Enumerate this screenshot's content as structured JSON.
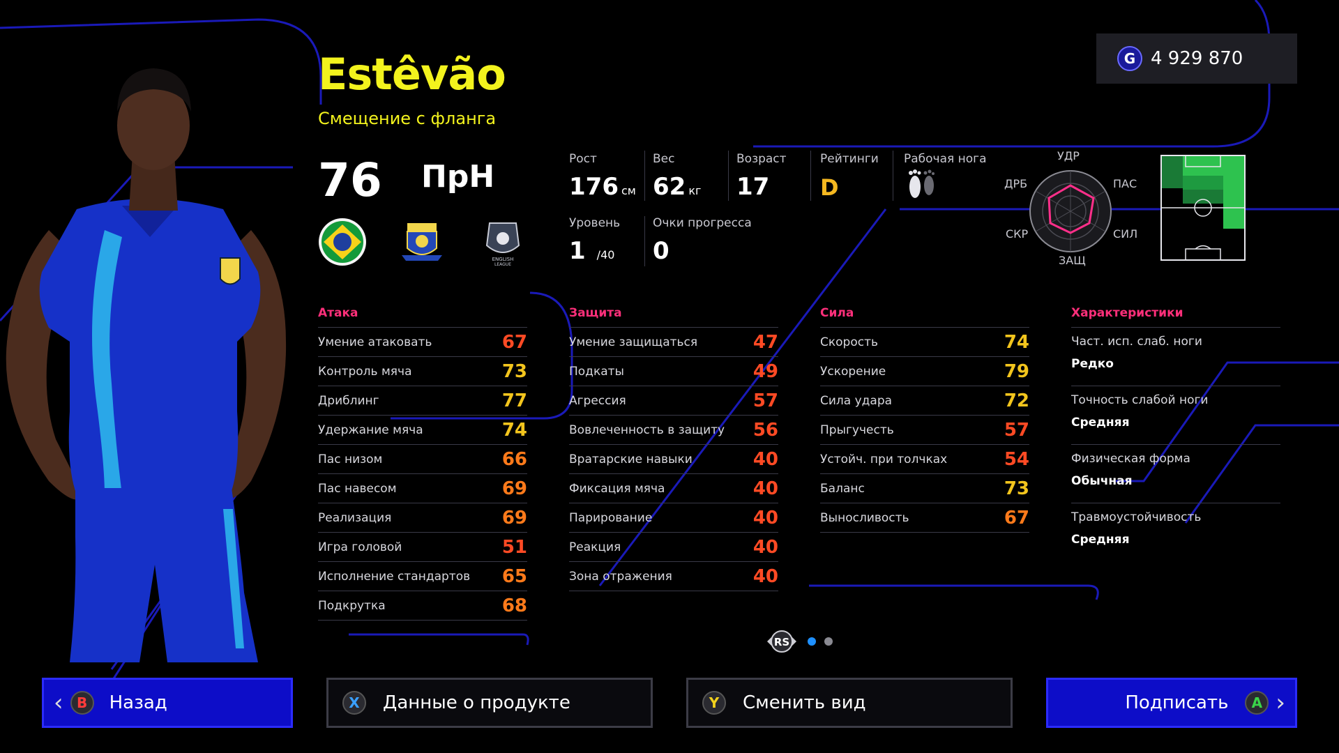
{
  "currency": {
    "icon": "G",
    "value": "4 929 870"
  },
  "player": {
    "name": "Estêvão",
    "play_style": "Смещение с фланга",
    "overall": "76",
    "position": "ПрН"
  },
  "info": {
    "height_label": "Рост",
    "height_value": "176",
    "height_unit": "см",
    "weight_label": "Вес",
    "weight_value": "62",
    "weight_unit": "кг",
    "age_label": "Возраст",
    "age_value": "17",
    "ratings_label": "Рейтинги",
    "ratings_value": "D",
    "foot_label": "Рабочая нога",
    "level_label": "Уровень",
    "level_value": "1",
    "level_max": "/40",
    "progress_label": "Очки прогресса",
    "progress_value": "0"
  },
  "radar": {
    "top": "УДР",
    "right_top": "ПАС",
    "right_bottom": "СИЛ",
    "bottom": "ЗАЩ",
    "left_bottom": "СКР",
    "left_top": "ДРБ"
  },
  "columns": {
    "attack": {
      "title": "Атака",
      "stats": [
        {
          "name": "Умение атаковать",
          "value": "67"
        },
        {
          "name": "Контроль мяча",
          "value": "73"
        },
        {
          "name": "Дриблинг",
          "value": "77"
        },
        {
          "name": "Удержание мяча",
          "value": "74"
        },
        {
          "name": "Пас низом",
          "value": "66"
        },
        {
          "name": "Пас навесом",
          "value": "69"
        },
        {
          "name": "Реализация",
          "value": "69"
        },
        {
          "name": "Игра головой",
          "value": "51"
        },
        {
          "name": "Исполнение стандартов",
          "value": "65"
        },
        {
          "name": "Подкрутка",
          "value": "68"
        }
      ]
    },
    "defense": {
      "title": "Защита",
      "stats": [
        {
          "name": "Умение защищаться",
          "value": "47"
        },
        {
          "name": "Подкаты",
          "value": "49"
        },
        {
          "name": "Агрессия",
          "value": "57"
        },
        {
          "name": "Вовлеченность в защиту",
          "value": "56"
        },
        {
          "name": "Вратарские навыки",
          "value": "40"
        },
        {
          "name": "Фиксация мяча",
          "value": "40"
        },
        {
          "name": "Парирование",
          "value": "40"
        },
        {
          "name": "Реакция",
          "value": "40"
        },
        {
          "name": "Зона отражения",
          "value": "40"
        }
      ]
    },
    "power": {
      "title": "Сила",
      "stats": [
        {
          "name": "Скорость",
          "value": "74"
        },
        {
          "name": "Ускорение",
          "value": "79"
        },
        {
          "name": "Сила удара",
          "value": "72"
        },
        {
          "name": "Прыгучесть",
          "value": "57"
        },
        {
          "name": "Устойч. при толчках",
          "value": "54"
        },
        {
          "name": "Баланс",
          "value": "73"
        },
        {
          "name": "Выносливость",
          "value": "67"
        }
      ]
    },
    "traits": {
      "title": "Характеристики",
      "items": [
        {
          "label": "Част. исп. слаб. ноги",
          "value": "Редко"
        },
        {
          "label": "Точность слабой ноги",
          "value": "Средняя"
        },
        {
          "label": "Физическая форма",
          "value": "Обычная"
        },
        {
          "label": "Травмоустойчивость",
          "value": "Средняя"
        }
      ]
    }
  },
  "pager": {
    "stick": "RS"
  },
  "buttons": {
    "back": {
      "key": "B",
      "label": "Назад"
    },
    "product": {
      "key": "X",
      "label": "Данные о продукте"
    },
    "view": {
      "key": "Y",
      "label": "Сменить вид"
    },
    "sign": {
      "key": "A",
      "label": "Подписать"
    }
  },
  "colors": {
    "accent_yellow": "#f3f31d",
    "section_pink": "#ff2f7a",
    "button_blue": "#0d0dc8"
  }
}
